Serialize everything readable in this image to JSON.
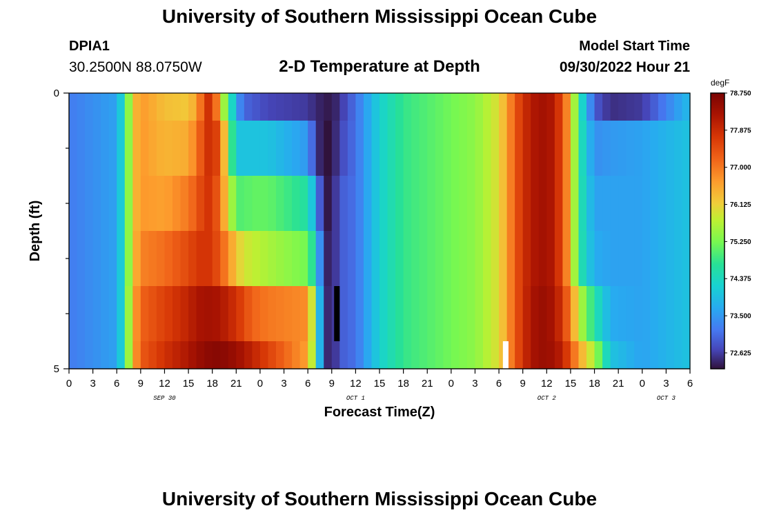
{
  "header": {
    "title": "University of Southern Mississippi Ocean Cube",
    "station_id": "DPIA1",
    "coordinates": "30.2500N  88.0750W",
    "subtitle": "2-D Temperature at Depth",
    "model_start_label": "Model Start Time",
    "model_start_value": "09/30/2022 Hour 21"
  },
  "footer": {
    "title": "University of Southern Mississippi Ocean Cube"
  },
  "chart_data": {
    "type": "heatmap",
    "title": "2-D Temperature at Depth",
    "xlabel": "Forecast Time(Z)",
    "ylabel": "Depth (ft)",
    "x_unit": "forecast hour from 2022-09-30 00Z",
    "xlim": [
      0,
      78
    ],
    "ylim": [
      0,
      5
    ],
    "x_ticks": [
      0,
      3,
      6,
      9,
      12,
      15,
      18,
      21,
      24,
      27,
      30,
      33,
      36,
      39,
      42,
      45,
      48,
      51,
      54,
      57,
      60,
      63,
      66,
      69,
      72,
      75,
      78
    ],
    "x_tick_labels": [
      "0",
      "3",
      "6",
      "9",
      "12",
      "15",
      "18",
      "21",
      "0",
      "3",
      "6",
      "9",
      "12",
      "15",
      "18",
      "21",
      "0",
      "3",
      "6",
      "9",
      "12",
      "15",
      "18",
      "21",
      "0",
      "3",
      "6"
    ],
    "date_labels": [
      {
        "text": "SEP 30",
        "x": 12
      },
      {
        "text": "OCT 1",
        "x": 36
      },
      {
        "text": "OCT 2",
        "x": 60
      },
      {
        "text": "OCT 3",
        "x": 75
      }
    ],
    "y_ticks": [
      0,
      5
    ],
    "y_tick_labels": [
      "0",
      "5"
    ],
    "colorbar": {
      "unit": "degF",
      "min": 72.25,
      "max": 78.75,
      "ticks": [
        78.75,
        77.875,
        77.0,
        76.125,
        75.25,
        74.375,
        73.5,
        72.625
      ],
      "tick_labels": [
        "78.750",
        "77.875",
        "77.000",
        "76.125",
        "75.250",
        "74.375",
        "73.500",
        "72.625"
      ]
    },
    "depth_bins": [
      {
        "top": 0.0,
        "bottom": 0.5
      },
      {
        "top": 0.5,
        "bottom": 1.5
      },
      {
        "top": 1.5,
        "bottom": 2.5
      },
      {
        "top": 2.5,
        "bottom": 3.5
      },
      {
        "top": 3.5,
        "bottom": 4.5
      },
      {
        "top": 4.5,
        "bottom": 5.0
      }
    ],
    "layers": [
      {
        "depth_top": 0.0,
        "depth_bottom": 0.5,
        "hours": [
          0,
          6,
          7,
          8,
          9,
          12,
          15,
          16,
          17,
          18,
          19,
          20,
          21,
          22,
          23,
          25,
          30,
          31,
          32,
          33,
          34,
          36,
          39,
          42,
          45,
          48,
          51,
          54,
          55,
          56,
          57,
          58,
          59,
          60,
          61,
          62,
          63,
          64,
          66,
          68,
          72,
          78
        ],
        "temps": [
          73.2,
          73.6,
          74.6,
          76.2,
          76.7,
          76.3,
          76.2,
          76.6,
          77.5,
          78.1,
          76.0,
          75.0,
          73.6,
          73.0,
          72.9,
          72.7,
          72.6,
          72.45,
          72.35,
          72.3,
          72.55,
          73.1,
          74.2,
          74.8,
          75.0,
          75.2,
          75.4,
          76.0,
          76.6,
          77.3,
          77.8,
          78.1,
          78.3,
          78.3,
          78.1,
          77.4,
          76.4,
          74.7,
          72.9,
          72.5,
          72.6,
          73.9
        ]
      },
      {
        "depth_top": 0.5,
        "depth_bottom": 1.5,
        "hours": [
          0,
          6,
          7,
          8,
          9,
          12,
          15,
          16,
          17,
          18,
          19,
          20,
          21,
          22,
          23,
          25,
          30,
          31,
          32,
          33,
          34,
          36,
          39,
          42,
          45,
          48,
          51,
          54,
          55,
          56,
          57,
          58,
          59,
          60,
          61,
          62,
          63,
          64,
          66,
          68,
          72,
          78
        ],
        "temps": [
          73.2,
          73.6,
          74.6,
          76.2,
          76.7,
          76.4,
          76.5,
          77.0,
          77.6,
          78.0,
          77.2,
          75.5,
          74.0,
          74.0,
          74.0,
          74.0,
          73.5,
          72.6,
          72.25,
          72.25,
          72.7,
          73.1,
          74.2,
          74.8,
          75.0,
          75.2,
          75.4,
          76.0,
          76.6,
          77.3,
          77.8,
          78.1,
          78.3,
          78.3,
          78.1,
          77.4,
          76.4,
          74.7,
          73.4,
          73.5,
          73.6,
          74.0
        ]
      },
      {
        "depth_top": 1.5,
        "depth_bottom": 2.5,
        "hours": [
          0,
          6,
          7,
          8,
          9,
          12,
          15,
          16,
          17,
          18,
          19,
          20,
          21,
          22,
          23,
          25,
          30,
          31,
          32,
          33,
          34,
          36,
          39,
          42,
          45,
          48,
          51,
          54,
          55,
          56,
          57,
          58,
          59,
          60,
          61,
          62,
          63,
          64,
          66,
          68,
          72,
          78
        ],
        "temps": [
          73.2,
          73.6,
          74.6,
          76.2,
          76.7,
          76.6,
          77.0,
          77.3,
          77.7,
          77.8,
          77.0,
          76.0,
          75.0,
          75.0,
          75.1,
          75.1,
          74.6,
          73.5,
          72.3,
          72.3,
          72.9,
          73.1,
          74.2,
          74.8,
          75.0,
          75.2,
          75.4,
          76.0,
          76.6,
          77.3,
          77.8,
          78.1,
          78.3,
          78.3,
          78.1,
          77.4,
          76.4,
          74.7,
          73.6,
          73.6,
          73.6,
          74.0
        ]
      },
      {
        "depth_top": 2.5,
        "depth_bottom": 3.5,
        "hours": [
          0,
          6,
          7,
          8,
          9,
          12,
          15,
          16,
          17,
          18,
          19,
          20,
          21,
          22,
          23,
          25,
          30,
          31,
          32,
          33,
          34,
          36,
          39,
          42,
          45,
          48,
          51,
          54,
          55,
          56,
          57,
          58,
          59,
          60,
          61,
          62,
          63,
          64,
          66,
          68,
          72,
          78
        ],
        "temps": [
          73.2,
          73.6,
          74.6,
          76.2,
          76.9,
          77.1,
          77.5,
          77.7,
          77.8,
          77.7,
          77.3,
          76.8,
          76.2,
          75.9,
          75.8,
          75.6,
          75.2,
          74.3,
          72.5,
          72.3,
          72.9,
          73.1,
          74.2,
          74.8,
          75.0,
          75.2,
          75.4,
          76.0,
          76.6,
          77.3,
          77.8,
          78.1,
          78.3,
          78.3,
          78.1,
          77.4,
          76.4,
          74.7,
          73.7,
          73.6,
          73.6,
          74.0
        ]
      },
      {
        "depth_top": 3.5,
        "depth_bottom": 4.5,
        "hours": [
          0,
          6,
          7,
          8,
          9,
          12,
          15,
          16,
          17,
          18,
          19,
          20,
          21,
          22,
          23,
          25,
          30,
          31,
          32,
          33,
          34,
          36,
          39,
          42,
          45,
          48,
          51,
          54,
          55,
          56,
          57,
          58,
          59,
          60,
          61,
          62,
          63,
          64,
          66,
          68,
          72,
          78
        ],
        "temps": [
          73.2,
          73.6,
          74.6,
          76.4,
          77.2,
          77.6,
          78.0,
          78.2,
          78.3,
          78.3,
          78.2,
          78.0,
          77.8,
          77.5,
          77.2,
          77.0,
          76.8,
          75.0,
          72.6,
          72.3,
          72.9,
          73.1,
          74.2,
          74.8,
          75.0,
          75.2,
          75.4,
          76.0,
          76.6,
          77.3,
          77.8,
          78.2,
          78.4,
          78.4,
          78.2,
          77.7,
          76.9,
          75.8,
          74.6,
          73.7,
          73.6,
          74.0
        ]
      },
      {
        "depth_top": 4.5,
        "depth_bottom": 5.0,
        "hours": [
          0,
          6,
          7,
          8,
          9,
          12,
          15,
          16,
          17,
          18,
          19,
          20,
          21,
          22,
          23,
          25,
          30,
          31,
          32,
          33,
          34,
          36,
          39,
          42,
          45,
          48,
          51,
          54,
          55,
          56,
          57,
          58,
          59,
          60,
          61,
          62,
          63,
          64,
          66,
          68,
          72,
          78
        ],
        "temps": [
          73.2,
          73.6,
          74.6,
          76.4,
          77.3,
          77.8,
          78.2,
          78.4,
          78.5,
          78.6,
          78.6,
          78.5,
          78.4,
          78.2,
          78.0,
          77.6,
          76.6,
          75.0,
          72.6,
          72.3,
          72.9,
          73.1,
          74.2,
          74.8,
          75.0,
          75.2,
          75.4,
          76.0,
          76.6,
          77.3,
          77.8,
          78.2,
          78.4,
          78.4,
          78.3,
          78.0,
          77.4,
          76.6,
          75.6,
          74.0,
          73.6,
          74.0
        ]
      }
    ],
    "markers": [
      {
        "color": "#000000",
        "x_start": 33.3,
        "x_end": 34.0,
        "depth_top": 3.5,
        "depth_bottom": 4.5
      },
      {
        "color": "#ffffff",
        "x_start": 54.5,
        "x_end": 55.2,
        "depth_top": 4.5,
        "depth_bottom": 5.0
      }
    ]
  },
  "colors": {
    "frame": "#000000",
    "background": "#ffffff"
  }
}
